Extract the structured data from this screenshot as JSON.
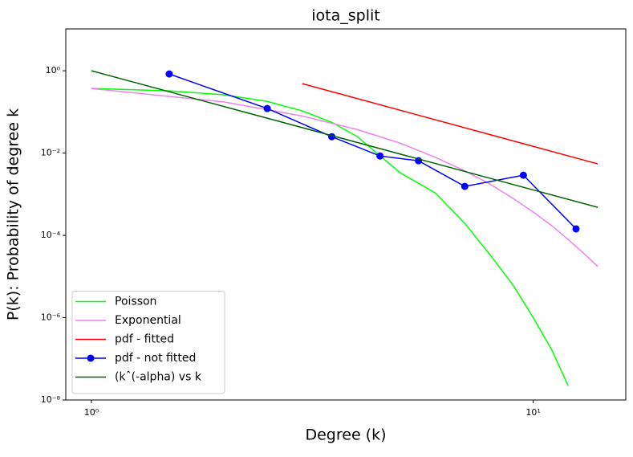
{
  "chart_data": {
    "type": "line",
    "title": "iota_split",
    "x_label": "Degree (k)",
    "y_label": "P(k): Probability of degree k",
    "xscale": "log",
    "yscale": "log",
    "xlim": [
      0.875,
      16.2
    ],
    "ylim": [
      1e-08,
      10.4
    ],
    "xticks": [
      {
        "value": 1,
        "label": "10⁰"
      },
      {
        "value": 10,
        "label": "10¹"
      }
    ],
    "yticks": [
      {
        "value": 1e-08,
        "label": "10⁻⁸"
      },
      {
        "value": 1e-06,
        "label": "10⁻⁶"
      },
      {
        "value": 0.0001,
        "label": "10⁻⁴"
      },
      {
        "value": 0.01,
        "label": "10⁻²"
      },
      {
        "value": 1,
        "label": "10⁰"
      }
    ],
    "legend": "lower left",
    "series": [
      {
        "name": "Poisson",
        "color": "#00ff00",
        "marker": false,
        "x": [
          1,
          1.5,
          2,
          2.5,
          3,
          3.5,
          4,
          5,
          6,
          7,
          8,
          9,
          10,
          11,
          12
        ],
        "values": [
          0.372,
          0.325,
          0.26,
          0.18,
          0.106,
          0.056,
          0.025,
          0.0033,
          0.00108,
          0.000196,
          3.3e-05,
          6.2e-06,
          1e-06,
          1.7e-07,
          2.2e-08
        ]
      },
      {
        "name": "Exponential",
        "color": "#ee82ee",
        "marker": false,
        "x": [
          1,
          2,
          3,
          4,
          5,
          6,
          7,
          8,
          9,
          10,
          11,
          12,
          13,
          14
        ],
        "values": [
          0.37,
          0.174,
          0.0794,
          0.0372,
          0.0174,
          0.0079,
          0.0037,
          0.00174,
          0.00079,
          0.00037,
          0.000174,
          7.9e-05,
          3.7e-05,
          1.74e-05
        ]
      },
      {
        "name": "pdf - fitted",
        "color": "#ff0000",
        "marker": false,
        "x": [
          3,
          14
        ],
        "values": [
          0.487,
          0.00546
        ]
      },
      {
        "name": "pdf - not fitted",
        "color": "#0000ff",
        "marker": true,
        "x": [
          1.5,
          2.5,
          3.5,
          4.5,
          5.5,
          7,
          9.5,
          12.5
        ],
        "values": [
          0.835,
          0.121,
          0.025,
          0.0085,
          0.0065,
          0.00155,
          0.0029,
          0.000144
        ]
      },
      {
        "name": "(kˆ(-alpha) vs k",
        "color": "#006400",
        "marker": false,
        "x": [
          1,
          14
        ],
        "values": [
          1,
          0.00048
        ]
      }
    ]
  }
}
